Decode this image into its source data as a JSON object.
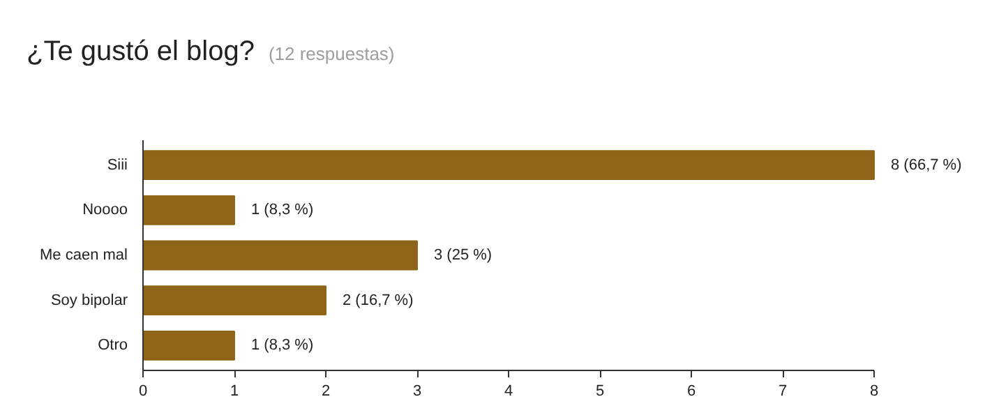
{
  "chart_data": {
    "type": "bar",
    "orientation": "horizontal",
    "title": "¿Te gustó el blog?",
    "subtitle": "(12 respuestas)",
    "categories": [
      "Siii",
      "Noooo",
      "Me caen mal",
      "Soy bipolar",
      "Otro"
    ],
    "values": [
      8,
      1,
      3,
      2,
      1
    ],
    "color": "#8d6418",
    "value_labels": [
      "8 (66,7 %)",
      "1 (8,3 %)",
      "3 (25 %)",
      "2 (16,7 %)",
      "1 (8,3 %)"
    ],
    "xlim": [
      0,
      8
    ],
    "xticks": [
      0,
      1,
      2,
      3,
      4,
      5,
      6,
      7,
      8
    ],
    "grid": false
  }
}
